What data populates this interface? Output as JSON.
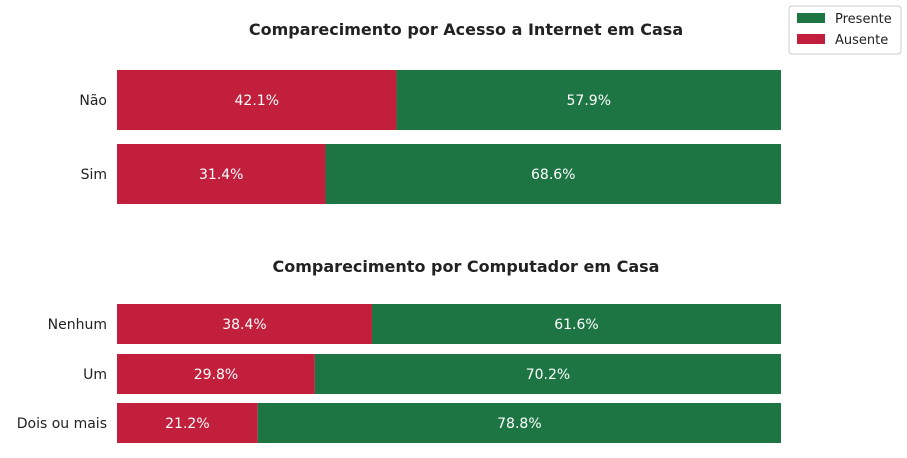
{
  "colors": {
    "presente": "#1d7544",
    "ausente": "#c11f3b"
  },
  "legend": [
    {
      "key": "presente",
      "label": "Presente"
    },
    {
      "key": "ausente",
      "label": "Ausente"
    }
  ],
  "chart_data": [
    {
      "type": "bar",
      "orientation": "horizontal",
      "stacked": true,
      "title": "Comparecimento por Acesso a Internet em Casa",
      "categories": [
        "Não",
        "Sim"
      ],
      "series": [
        {
          "name": "Ausente",
          "key": "ausente",
          "values": [
            42.1,
            31.4
          ],
          "labels": [
            "42.1%",
            "31.4%"
          ]
        },
        {
          "name": "Presente",
          "key": "presente",
          "values": [
            57.9,
            68.6
          ],
          "labels": [
            "57.9%",
            "68.6%"
          ]
        }
      ],
      "xlim": [
        0,
        100
      ],
      "grid": false,
      "legend_position": "top-right"
    },
    {
      "type": "bar",
      "orientation": "horizontal",
      "stacked": true,
      "title": "Comparecimento por Computador em Casa",
      "categories": [
        "Nenhum",
        "Um",
        "Dois ou mais"
      ],
      "series": [
        {
          "name": "Ausente",
          "key": "ausente",
          "values": [
            38.4,
            29.8,
            21.2
          ],
          "labels": [
            "38.4%",
            "29.8%",
            "21.2%"
          ]
        },
        {
          "name": "Presente",
          "key": "presente",
          "values": [
            61.6,
            70.2,
            78.8
          ],
          "labels": [
            "61.6%",
            "70.2%",
            "78.8%"
          ]
        }
      ],
      "xlim": [
        0,
        100
      ],
      "grid": false
    }
  ]
}
